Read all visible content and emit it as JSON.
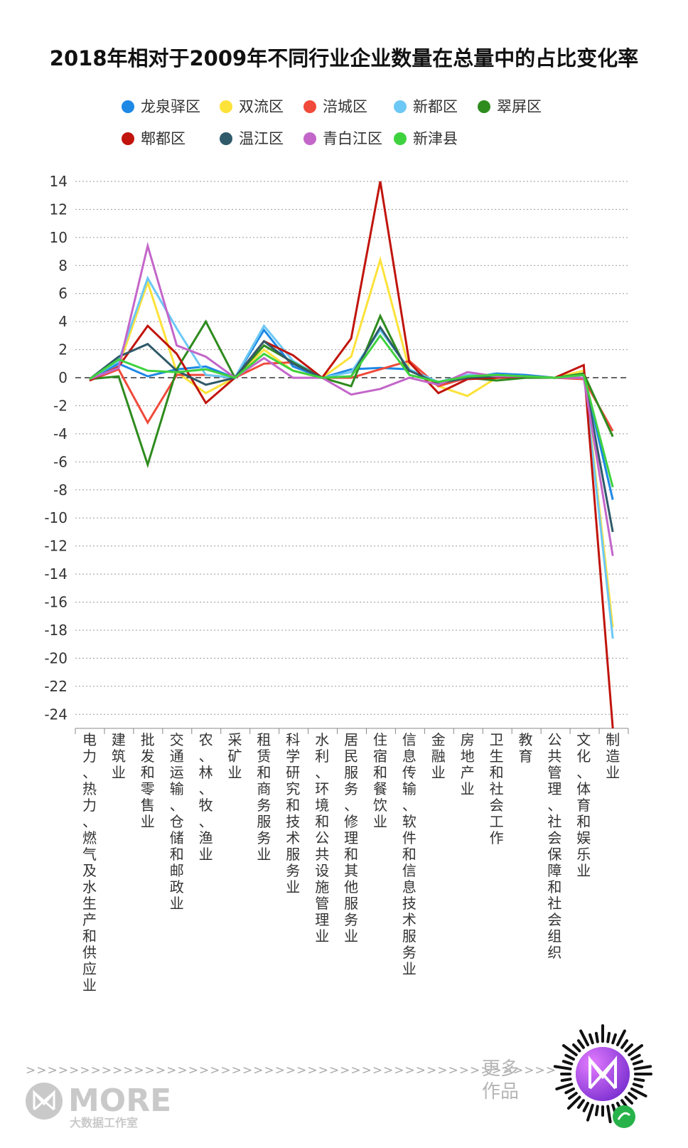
{
  "chart_data": {
    "type": "line",
    "title": "2018年相对于2009年不同行业企业数量在总量中的占比变化率",
    "xlabel": "",
    "ylabel": "",
    "ylim": [
      -25,
      14
    ],
    "yticks": [
      14,
      12,
      10,
      8,
      6,
      4,
      2,
      0,
      -2,
      -4,
      -6,
      -8,
      -10,
      -12,
      -14,
      -16,
      -18,
      -20,
      -22,
      -24
    ],
    "grid": true,
    "legend_position": "top",
    "categories": [
      "电力、热力、燃气及水生产和供应业",
      "建筑业",
      "批发和零售业",
      "交通运输、仓储和邮政业",
      "农、林、牧、渔业",
      "采矿业",
      "租赁和商务服务业",
      "科学研究和技术服务业",
      "水利、环境和公共设施管理业",
      "居民服务、修理和其他服务业",
      "住宿和餐饮业",
      "信息传输、软件和信息技术服务业",
      "金融业",
      "房地产业",
      "卫生和社会工作",
      "教育",
      "公共管理、社会保障和社会组织",
      "文化、体育和娱乐业",
      "制造业"
    ],
    "series": [
      {
        "name": "龙泉驿区",
        "color": "#1E88E5",
        "values": [
          -0.1,
          1.0,
          0.1,
          0.6,
          0.8,
          0.0,
          3.4,
          0.8,
          0.0,
          0.6,
          0.7,
          0.6,
          -0.5,
          0.0,
          0.3,
          0.2,
          0.0,
          0.2,
          -8.7
        ]
      },
      {
        "name": "双流区",
        "color": "#FDE23A",
        "values": [
          -0.2,
          0.8,
          6.8,
          0.4,
          -1.1,
          0.0,
          2.0,
          0.5,
          0.0,
          1.5,
          8.4,
          0.6,
          -0.6,
          -1.3,
          0.0,
          0.1,
          0.0,
          0.5,
          -17.8
        ]
      },
      {
        "name": "涪城区",
        "color": "#F04A3A",
        "values": [
          -0.2,
          0.6,
          -3.2,
          0.2,
          0.2,
          0.0,
          1.0,
          1.1,
          0.0,
          0.0,
          0.6,
          1.2,
          -0.6,
          0.0,
          0.0,
          0.1,
          0.0,
          -0.1,
          -3.8
        ]
      },
      {
        "name": "新都区",
        "color": "#6CC8F5",
        "values": [
          -0.1,
          1.2,
          7.1,
          3.5,
          0.2,
          0.0,
          3.7,
          1.2,
          0.0,
          0.4,
          3.4,
          0.6,
          -0.3,
          0.2,
          0.2,
          0.1,
          0.0,
          0.3,
          -18.6
        ]
      },
      {
        "name": "翠屏区",
        "color": "#2E8B1E",
        "values": [
          -0.1,
          0.1,
          -6.2,
          0.6,
          4.0,
          0.0,
          2.3,
          1.1,
          0.0,
          -0.6,
          4.4,
          0.2,
          -0.3,
          0.0,
          -0.2,
          0.0,
          0.0,
          0.3,
          -4.2
        ]
      },
      {
        "name": "郫都区",
        "color": "#C0140C",
        "values": [
          -0.2,
          0.8,
          3.7,
          1.7,
          -1.8,
          0.0,
          2.6,
          1.6,
          0.0,
          2.8,
          14.0,
          1.1,
          -1.1,
          -0.1,
          0.0,
          0.1,
          0.0,
          0.9,
          -25.0
        ]
      },
      {
        "name": "温江区",
        "color": "#2F5A6A",
        "values": [
          -0.1,
          1.5,
          2.4,
          0.5,
          -0.5,
          0.0,
          2.6,
          1.0,
          0.0,
          0.1,
          3.6,
          0.5,
          -0.4,
          0.0,
          0.1,
          0.1,
          0.0,
          0.2,
          -11.0
        ]
      },
      {
        "name": "青白江区",
        "color": "#C366C9",
        "values": [
          -0.1,
          0.7,
          9.4,
          2.3,
          1.5,
          0.0,
          1.4,
          0.0,
          0.0,
          -1.2,
          -0.8,
          0.0,
          -0.5,
          0.4,
          0.1,
          0.1,
          0.0,
          0.0,
          -12.7
        ]
      },
      {
        "name": "新津县",
        "color": "#3FD23F",
        "values": [
          -0.1,
          1.3,
          0.5,
          0.4,
          0.6,
          0.0,
          1.7,
          0.5,
          0.0,
          0.1,
          3.0,
          0.2,
          -0.3,
          0.1,
          0.2,
          0.1,
          0.0,
          0.2,
          -7.8
        ]
      }
    ]
  },
  "footer": {
    "dashes": ">>>>>>>>>>>>>>>>>>>>>>>>>>>>>>>>>>>>>>>>>>>>>>>>>",
    "brand": "MORE",
    "brand_sub": "大数据工作室",
    "more_works_line1": "更多",
    "more_works_line2": "作品"
  }
}
